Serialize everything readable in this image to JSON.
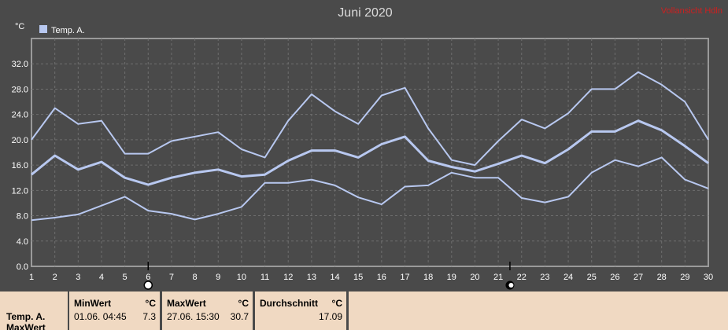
{
  "title": "Juni 2020",
  "corner_label": "Vollansicht Hdln",
  "legend": {
    "label": "Temp. A.",
    "color": "#b8c8f0"
  },
  "y_unit": "°C",
  "colors": {
    "background": "#4a4a4a",
    "plot_border": "#9a9a9a",
    "grid": "#6e6e6e",
    "series": "#b8c8f0",
    "corner_label": "#cc2020",
    "panel": "#f0d9c2",
    "axis_text": "#ffffff"
  },
  "chart_data": {
    "type": "line",
    "title": "Juni 2020",
    "ylabel": "°C",
    "xlabel": "",
    "ylim": [
      0,
      36
    ],
    "y_ticks": [
      0,
      4,
      8,
      12,
      16,
      20,
      24,
      28,
      32
    ],
    "y_tick_labels": [
      "0.0",
      "4.0",
      "8.0",
      "12.0",
      "16.0",
      "20.0",
      "24.0",
      "28.0",
      "32.0"
    ],
    "x": [
      1,
      2,
      3,
      4,
      5,
      6,
      7,
      8,
      9,
      10,
      11,
      12,
      13,
      14,
      15,
      16,
      17,
      18,
      19,
      20,
      21,
      22,
      23,
      24,
      25,
      26,
      27,
      28,
      29,
      30
    ],
    "grid": true,
    "legend_position": "top-left",
    "series": [
      {
        "role": "max",
        "values": [
          20.0,
          25.0,
          22.5,
          23.0,
          17.8,
          17.8,
          19.8,
          20.5,
          21.2,
          18.5,
          17.2,
          23.0,
          27.2,
          24.5,
          22.5,
          27.0,
          28.2,
          21.8,
          16.8,
          16.0,
          19.8,
          23.2,
          21.8,
          24.2,
          28.0,
          28.0,
          30.7,
          28.7,
          26.0,
          20.0
        ]
      },
      {
        "role": "avg",
        "values": [
          14.5,
          17.5,
          15.3,
          16.5,
          14.0,
          12.9,
          14.0,
          14.8,
          15.3,
          14.2,
          14.5,
          16.7,
          18.3,
          18.3,
          17.2,
          19.3,
          20.5,
          16.7,
          15.7,
          15.0,
          16.2,
          17.5,
          16.3,
          18.5,
          21.3,
          21.3,
          23.0,
          21.5,
          19.0,
          16.3
        ]
      },
      {
        "role": "min",
        "values": [
          7.3,
          7.7,
          8.2,
          9.6,
          11.0,
          8.8,
          8.3,
          7.4,
          8.3,
          9.4,
          13.2,
          13.2,
          13.7,
          12.8,
          10.9,
          9.8,
          12.6,
          12.8,
          14.8,
          14.0,
          14.0,
          10.8,
          10.1,
          11.0,
          14.8,
          16.8,
          15.8,
          17.2,
          13.7,
          12.3
        ]
      }
    ],
    "markers": [
      {
        "x": 6,
        "symbol": "sun"
      },
      {
        "x": 21.5,
        "symbol": "moon"
      }
    ]
  },
  "stats": {
    "series_label": "Temp. A.",
    "row_label_2": "MaxWert",
    "min": {
      "header": "MinWert",
      "unit": "°C",
      "datetime": "01.06.  04:45",
      "value": "7.3"
    },
    "max": {
      "header": "MaxWert",
      "unit": "°C",
      "datetime": "27.06.  15:30",
      "value": "30.7"
    },
    "avg": {
      "header": "Durchschnitt",
      "unit": "°C",
      "value": "17.09"
    }
  }
}
